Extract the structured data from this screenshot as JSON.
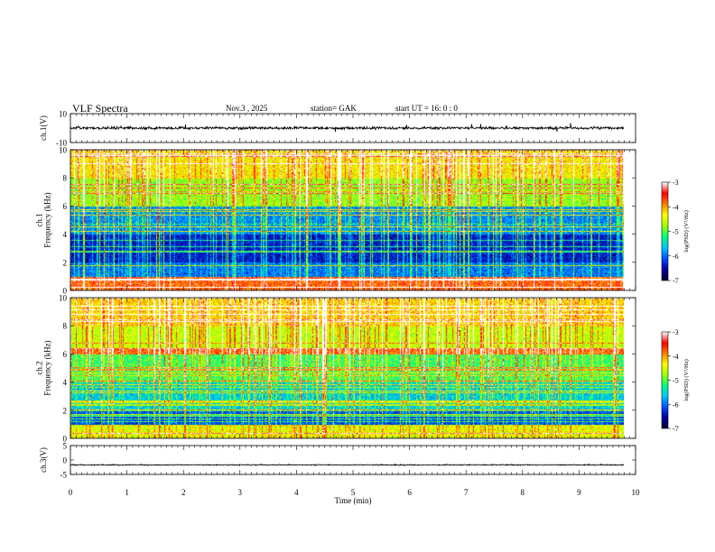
{
  "header": {
    "title": "VLF  Spectra",
    "date": "Nov.3  , 2025",
    "station": "station= GAK",
    "start_ut": "start  UT  =    16: 0   : 0"
  },
  "chart_data": [
    {
      "type": "line",
      "panel": "ch1-waveform",
      "ylabel": "ch.1(V)",
      "ylim": [
        -10,
        10
      ],
      "yticks": [
        "10",
        "-10"
      ],
      "xlim": [
        0,
        10
      ],
      "data_extent_min": [
        0,
        9.8
      ],
      "baseline": 0,
      "color": "#000000"
    },
    {
      "type": "heatmap",
      "panel": "ch1-spectrogram",
      "ylabel": "ch.1\nFrequency  (kHz)",
      "ylim": [
        0,
        10
      ],
      "yticks": [
        "0",
        "2",
        "4",
        "6",
        "8",
        "10"
      ],
      "xlim": [
        0,
        10
      ],
      "data_extent_min": [
        0,
        9.8
      ],
      "colorbar": {
        "label": "log(PSD) (V²/Hz)",
        "range": [
          -7,
          -3
        ],
        "ticks": [
          "-3",
          "-4",
          "-5",
          "-6",
          "-7"
        ]
      },
      "bands_khz": [
        {
          "from": 0,
          "to": 1.0,
          "level": -3.8
        },
        {
          "from": 1.0,
          "to": 2.0,
          "level": -6.0
        },
        {
          "from": 2.0,
          "to": 4.0,
          "level": -6.4
        },
        {
          "from": 4.0,
          "to": 6.0,
          "level": -5.9
        },
        {
          "from": 6.0,
          "to": 8.0,
          "level": -4.8
        },
        {
          "from": 8.0,
          "to": 10.0,
          "level": -4.3
        }
      ]
    },
    {
      "type": "heatmap",
      "panel": "ch2-spectrogram",
      "ylabel": "ch.2\nFrequency  (kHz)",
      "ylim": [
        0,
        10
      ],
      "yticks": [
        "0",
        "2",
        "4",
        "6",
        "8",
        "10"
      ],
      "xlim": [
        0,
        10
      ],
      "data_extent_min": [
        0,
        9.8
      ],
      "colorbar": {
        "label": "log(PSD) (V²/Hz)",
        "range": [
          -7,
          -3
        ],
        "ticks": [
          "-3",
          "-4",
          "-5",
          "-6",
          "-7"
        ]
      },
      "bands_khz": [
        {
          "from": 0,
          "to": 1.0,
          "level": -4.5
        },
        {
          "from": 1.0,
          "to": 2.0,
          "level": -6.2
        },
        {
          "from": 2.0,
          "to": 4.0,
          "level": -5.6
        },
        {
          "from": 4.0,
          "to": 6.0,
          "level": -5.1
        },
        {
          "from": 6.0,
          "to": 6.4,
          "level": -3.8
        },
        {
          "from": 6.4,
          "to": 8.0,
          "level": -4.6
        },
        {
          "from": 8.0,
          "to": 10.0,
          "level": -4.2
        }
      ]
    },
    {
      "type": "line",
      "panel": "ch3-waveform",
      "ylabel": "ch.3(V)",
      "ylim": [
        -5,
        5
      ],
      "yticks": [
        "5",
        "0",
        "-5"
      ],
      "xlim": [
        0,
        10
      ],
      "data_extent_min": [
        0,
        9.8
      ],
      "baseline": -1.7,
      "color": "#000000"
    }
  ],
  "xaxis": {
    "label": "Time  (min)",
    "range": [
      0,
      10
    ],
    "ticks": [
      "0",
      "1",
      "2",
      "3",
      "4",
      "5",
      "6",
      "7",
      "8",
      "9",
      "10"
    ]
  },
  "colors": {
    "colormap": [
      "#000033",
      "#0000a0",
      "#0050ff",
      "#00c8ff",
      "#00ff80",
      "#a0ff00",
      "#ffff00",
      "#ff8000",
      "#ff0000",
      "#ffffff"
    ]
  }
}
